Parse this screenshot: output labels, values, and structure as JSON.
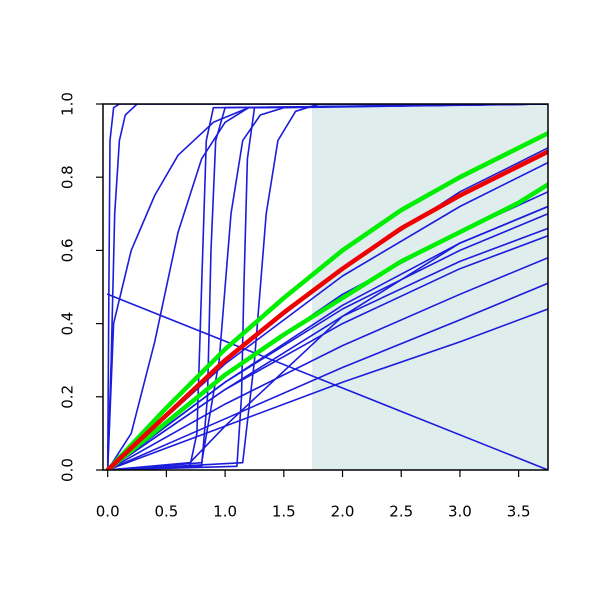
{
  "chart_data": {
    "type": "line",
    "xlim": [
      -0.04,
      3.75
    ],
    "ylim": [
      0,
      1
    ],
    "xticks": [
      {
        "value": 0,
        "label": "0.0"
      },
      0.5,
      {
        "value": 1,
        "label": "1.0"
      },
      1.5,
      {
        "value": 2,
        "label": "2.0"
      },
      2.5,
      {
        "value": 3,
        "label": "3.0"
      },
      3.5
    ],
    "yticks": [
      {
        "value": 0,
        "label": "0.0"
      },
      0.2,
      0.4,
      0.6,
      0.8,
      {
        "value": 1,
        "label": "1.0"
      }
    ],
    "shade_x": [
      1.74,
      3.75
    ],
    "shade_color": "#e0eded",
    "series": [
      {
        "color": "#1c1cdc",
        "line_width": 1.6,
        "x": [
          0,
          0.01,
          0.02,
          0.05,
          0.1,
          3.75
        ],
        "values": [
          0,
          0.5,
          0.9,
          0.99,
          1,
          1
        ]
      },
      {
        "color": "#1c1cdc",
        "line_width": 1.6,
        "x": [
          0,
          0.03,
          0.06,
          0.1,
          0.15,
          0.25,
          3.75
        ],
        "values": [
          0,
          0.3,
          0.7,
          0.9,
          0.97,
          1,
          1
        ]
      },
      {
        "color": "#1c1cdc",
        "line_width": 1.6,
        "x": [
          0,
          0.2,
          0.4,
          0.6,
          0.8,
          1.0,
          1.2,
          3.75
        ],
        "values": [
          0,
          0.1,
          0.35,
          0.65,
          0.85,
          0.95,
          0.99,
          1
        ]
      },
      {
        "color": "#1c1cdc",
        "line_width": 1.6,
        "x": [
          0,
          0.05,
          0.2,
          0.4,
          0.6,
          0.9,
          1.2,
          3.75
        ],
        "values": [
          0,
          0.4,
          0.6,
          0.75,
          0.86,
          0.95,
          0.99,
          1
        ]
      },
      {
        "color": "#1c1cdc",
        "line_width": 1.6,
        "x": [
          0,
          0.7,
          0.76,
          0.8,
          0.84,
          0.9,
          3.75
        ],
        "values": [
          0,
          0.01,
          0.1,
          0.5,
          0.9,
          0.99,
          1
        ]
      },
      {
        "color": "#1c1cdc",
        "line_width": 1.6,
        "x": [
          0,
          0.8,
          0.85,
          0.88,
          0.92,
          1.0,
          3.75
        ],
        "values": [
          0,
          0.01,
          0.2,
          0.6,
          0.9,
          0.99,
          1
        ]
      },
      {
        "color": "#1c1cdc",
        "line_width": 1.6,
        "x": [
          0,
          1.1,
          1.14,
          1.16,
          1.19,
          1.25,
          3.75
        ],
        "values": [
          0,
          0.01,
          0.2,
          0.5,
          0.85,
          0.99,
          1
        ]
      },
      {
        "color": "#1c1cdc",
        "line_width": 1.6,
        "x": [
          0,
          0.8,
          0.95,
          1.05,
          1.15,
          1.3,
          1.5,
          3.75
        ],
        "values": [
          0,
          0.02,
          0.3,
          0.7,
          0.9,
          0.97,
          0.99,
          1
        ]
      },
      {
        "color": "#1c1cdc",
        "line_width": 1.6,
        "x": [
          0,
          1.15,
          1.25,
          1.35,
          1.45,
          1.6,
          1.8,
          3.75
        ],
        "values": [
          0,
          0.02,
          0.3,
          0.7,
          0.9,
          0.98,
          1,
          1
        ]
      },
      {
        "color": "#1c1cdc",
        "line_width": 1.6,
        "x": [
          0,
          3.75
        ],
        "values": [
          0.48,
          0
        ]
      },
      {
        "color": "#1c1cdc",
        "line_width": 1.6,
        "x": [
          0,
          1,
          2,
          3,
          3.75
        ],
        "values": [
          0,
          0.3,
          0.55,
          0.76,
          0.88
        ]
      },
      {
        "color": "#1c1cdc",
        "line_width": 1.6,
        "x": [
          0,
          1,
          2,
          3,
          3.75
        ],
        "values": [
          0,
          0.29,
          0.53,
          0.72,
          0.84
        ]
      },
      {
        "color": "#1c1cdc",
        "line_width": 1.6,
        "x": [
          0,
          1,
          2,
          3,
          3.75
        ],
        "values": [
          0,
          0.26,
          0.48,
          0.65,
          0.76
        ]
      },
      {
        "color": "#1c1cdc",
        "line_width": 1.6,
        "x": [
          0,
          1,
          2,
          3,
          3.75
        ],
        "values": [
          0,
          0.24,
          0.45,
          0.62,
          0.72
        ]
      },
      {
        "color": "#1c1cdc",
        "line_width": 1.6,
        "x": [
          0,
          1,
          2,
          3,
          3.75
        ],
        "values": [
          0,
          0.24,
          0.44,
          0.6,
          0.7
        ]
      },
      {
        "color": "#1c1cdc",
        "line_width": 1.6,
        "x": [
          0,
          1,
          2,
          3,
          3.75
        ],
        "values": [
          0,
          0.22,
          0.42,
          0.57,
          0.66
        ]
      },
      {
        "color": "#1c1cdc",
        "line_width": 1.6,
        "x": [
          0,
          1,
          2,
          3,
          3.75
        ],
        "values": [
          0,
          0.22,
          0.4,
          0.55,
          0.64
        ]
      },
      {
        "color": "#1c1cdc",
        "line_width": 1.6,
        "x": [
          0,
          1,
          2,
          3,
          3.75
        ],
        "values": [
          0,
          0.18,
          0.34,
          0.48,
          0.58
        ]
      },
      {
        "color": "#1c1cdc",
        "line_width": 1.6,
        "x": [
          0,
          1,
          2,
          3,
          3.75
        ],
        "values": [
          0,
          0.14,
          0.28,
          0.41,
          0.51
        ]
      },
      {
        "color": "#1c1cdc",
        "line_width": 1.6,
        "x": [
          0,
          1,
          2,
          3,
          3.75
        ],
        "values": [
          0,
          0.12,
          0.24,
          0.35,
          0.44
        ]
      },
      {
        "color": "#1c1cdc",
        "line_width": 1.6,
        "x": [
          0,
          0.7,
          1,
          2,
          3,
          3.75
        ],
        "values": [
          0,
          0.02,
          0.12,
          0.42,
          0.62,
          0.72
        ]
      },
      {
        "color": "#00ee00",
        "line_width": 4.5,
        "x": [
          0,
          0.5,
          1,
          1.5,
          2,
          2.5,
          3,
          3.5,
          3.75
        ],
        "values": [
          0,
          0.17,
          0.33,
          0.47,
          0.6,
          0.71,
          0.8,
          0.88,
          0.92
        ]
      },
      {
        "color": "#00ee00",
        "line_width": 4.5,
        "x": [
          0,
          0.5,
          1,
          1.5,
          2,
          2.5,
          3,
          3.5,
          3.75
        ],
        "values": [
          0,
          0.13,
          0.26,
          0.37,
          0.47,
          0.57,
          0.65,
          0.73,
          0.78
        ]
      },
      {
        "color": "#ee0000",
        "line_width": 4.5,
        "x": [
          0,
          0.5,
          1,
          1.5,
          2,
          2.5,
          3,
          3.5,
          3.75
        ],
        "values": [
          0,
          0.15,
          0.3,
          0.43,
          0.55,
          0.66,
          0.75,
          0.83,
          0.87
        ]
      }
    ]
  }
}
